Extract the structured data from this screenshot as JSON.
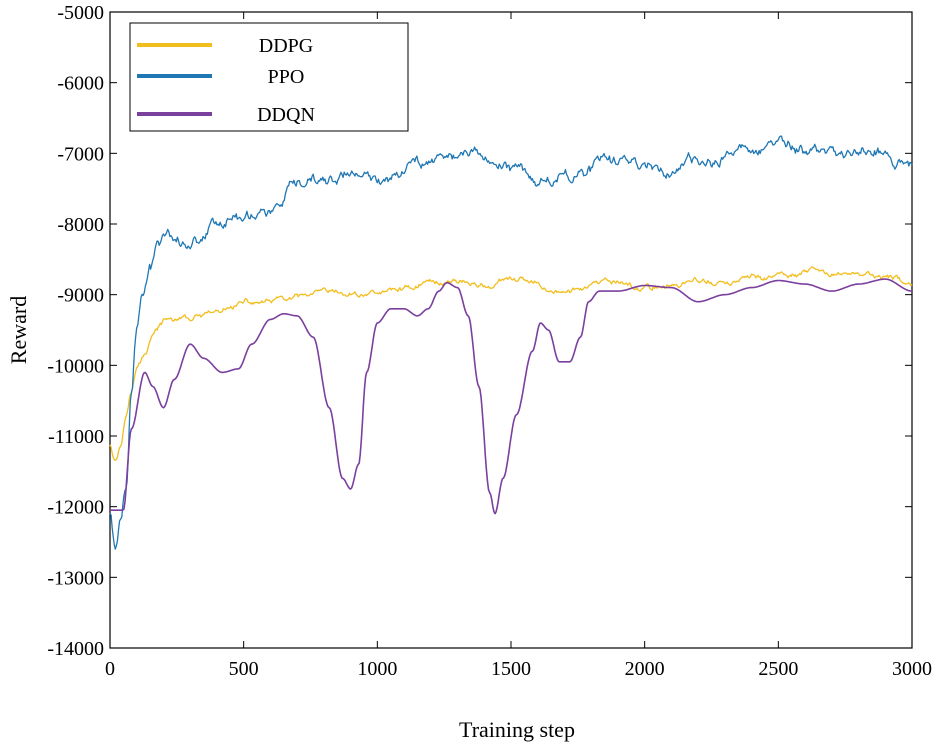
{
  "chart_data": {
    "type": "line",
    "title": "",
    "xlabel": "Training step",
    "ylabel": "Reward",
    "xlim": [
      0,
      3000
    ],
    "ylim": [
      -14000,
      -5000
    ],
    "xticks": [
      0,
      500,
      1000,
      1500,
      2000,
      2500,
      3000
    ],
    "yticks": [
      -14000,
      -13000,
      -12000,
      -11000,
      -10000,
      -9000,
      -8000,
      -7000,
      -6000,
      -5000
    ],
    "legend_position": "top-left",
    "series": [
      {
        "name": "DDPG",
        "color": "#F2BE1E",
        "noise": 55,
        "points": [
          [
            0,
            -11100
          ],
          [
            20,
            -11300
          ],
          [
            40,
            -11100
          ],
          [
            60,
            -10600
          ],
          [
            80,
            -10300
          ],
          [
            100,
            -10000
          ],
          [
            130,
            -9800
          ],
          [
            160,
            -9500
          ],
          [
            200,
            -9350
          ],
          [
            300,
            -9350
          ],
          [
            400,
            -9250
          ],
          [
            500,
            -9150
          ],
          [
            600,
            -9100
          ],
          [
            700,
            -9050
          ],
          [
            800,
            -8950
          ],
          [
            900,
            -9000
          ],
          [
            1000,
            -8950
          ],
          [
            1100,
            -8900
          ],
          [
            1200,
            -8800
          ],
          [
            1300,
            -8800
          ],
          [
            1400,
            -8850
          ],
          [
            1500,
            -8800
          ],
          [
            1600,
            -8850
          ],
          [
            1700,
            -8950
          ],
          [
            1800,
            -8900
          ],
          [
            1900,
            -8850
          ],
          [
            2000,
            -8900
          ],
          [
            2100,
            -8850
          ],
          [
            2200,
            -8800
          ],
          [
            2300,
            -8850
          ],
          [
            2400,
            -8750
          ],
          [
            2500,
            -8750
          ],
          [
            2600,
            -8700
          ],
          [
            2700,
            -8750
          ],
          [
            2800,
            -8700
          ],
          [
            2900,
            -8750
          ],
          [
            3000,
            -8850
          ]
        ]
      },
      {
        "name": "PPO",
        "color": "#1F77B4",
        "noise": 110,
        "points": [
          [
            0,
            -12100
          ],
          [
            20,
            -12600
          ],
          [
            40,
            -12200
          ],
          [
            60,
            -11800
          ],
          [
            80,
            -10500
          ],
          [
            100,
            -9600
          ],
          [
            120,
            -9100
          ],
          [
            150,
            -8700
          ],
          [
            180,
            -8300
          ],
          [
            200,
            -8150
          ],
          [
            300,
            -8300
          ],
          [
            400,
            -7900
          ],
          [
            500,
            -7850
          ],
          [
            600,
            -7800
          ],
          [
            700,
            -7500
          ],
          [
            800,
            -7400
          ],
          [
            900,
            -7300
          ],
          [
            1000,
            -7400
          ],
          [
            1100,
            -7200
          ],
          [
            1200,
            -7050
          ],
          [
            1300,
            -7000
          ],
          [
            1400,
            -7050
          ],
          [
            1500,
            -7150
          ],
          [
            1600,
            -7300
          ],
          [
            1700,
            -7250
          ],
          [
            1800,
            -7150
          ],
          [
            1900,
            -7100
          ],
          [
            2000,
            -7150
          ],
          [
            2100,
            -7200
          ],
          [
            2200,
            -7150
          ],
          [
            2300,
            -7050
          ],
          [
            2400,
            -6950
          ],
          [
            2500,
            -6900
          ],
          [
            2600,
            -7000
          ],
          [
            2700,
            -6950
          ],
          [
            2800,
            -6900
          ],
          [
            2900,
            -6950
          ],
          [
            3000,
            -7250
          ]
        ]
      },
      {
        "name": "DDQN",
        "color": "#7B3F9E",
        "noise": 0,
        "points": [
          [
            0,
            -12050
          ],
          [
            50,
            -12050
          ],
          [
            80,
            -10900
          ],
          [
            130,
            -10100
          ],
          [
            160,
            -10300
          ],
          [
            200,
            -10600
          ],
          [
            240,
            -10200
          ],
          [
            300,
            -9700
          ],
          [
            350,
            -9900
          ],
          [
            420,
            -10100
          ],
          [
            480,
            -10050
          ],
          [
            530,
            -9700
          ],
          [
            600,
            -9350
          ],
          [
            650,
            -9270
          ],
          [
            700,
            -9300
          ],
          [
            760,
            -9600
          ],
          [
            820,
            -10600
          ],
          [
            870,
            -11600
          ],
          [
            900,
            -11750
          ],
          [
            930,
            -11400
          ],
          [
            960,
            -10100
          ],
          [
            1000,
            -9400
          ],
          [
            1050,
            -9200
          ],
          [
            1100,
            -9200
          ],
          [
            1150,
            -9300
          ],
          [
            1190,
            -9200
          ],
          [
            1230,
            -8950
          ],
          [
            1260,
            -8830
          ],
          [
            1300,
            -8900
          ],
          [
            1340,
            -9300
          ],
          [
            1380,
            -10300
          ],
          [
            1420,
            -11800
          ],
          [
            1440,
            -12100
          ],
          [
            1470,
            -11600
          ],
          [
            1520,
            -10700
          ],
          [
            1580,
            -9800
          ],
          [
            1610,
            -9400
          ],
          [
            1640,
            -9500
          ],
          [
            1680,
            -9950
          ],
          [
            1720,
            -9950
          ],
          [
            1760,
            -9600
          ],
          [
            1790,
            -9100
          ],
          [
            1830,
            -8950
          ],
          [
            1900,
            -8950
          ],
          [
            2000,
            -8870
          ],
          [
            2100,
            -8900
          ],
          [
            2200,
            -9100
          ],
          [
            2300,
            -9000
          ],
          [
            2400,
            -8900
          ],
          [
            2500,
            -8800
          ],
          [
            2600,
            -8850
          ],
          [
            2700,
            -8950
          ],
          [
            2800,
            -8850
          ],
          [
            2900,
            -8780
          ],
          [
            3000,
            -8950
          ]
        ]
      }
    ]
  }
}
